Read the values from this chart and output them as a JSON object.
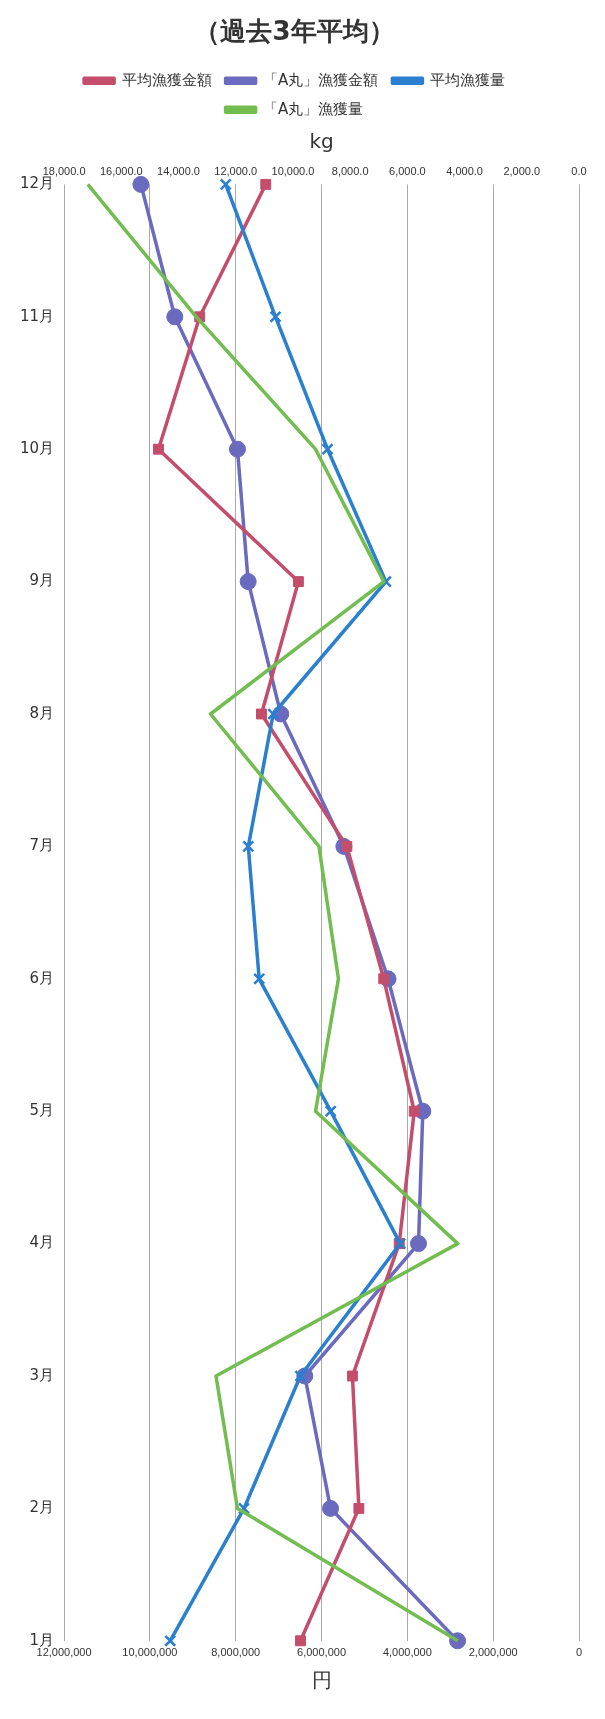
{
  "chart_data": {
    "type": "line",
    "orientation": "horizontal",
    "title": "（過去3年平均）",
    "xlabel": "円",
    "x2label": "kg",
    "categories": [
      "12月",
      "11月",
      "10月",
      "9月",
      "8月",
      "7月",
      "6月",
      "5月",
      "4月",
      "3月",
      "2月",
      "1月"
    ],
    "series": [
      {
        "name": "平均漁獲金額",
        "color": "#c44d6c",
        "marker": "square",
        "values": [
          7300000,
          8840000,
          9800000,
          6540000,
          7400000,
          5410000,
          4550000,
          3840000,
          4190000,
          5280000,
          5130000,
          6490000
        ]
      },
      {
        "name": "「A丸」漁獲金額",
        "color": "#6a6abf",
        "marker": "circle",
        "values": [
          10210000,
          9420000,
          7960000,
          7710000,
          6950000,
          5480000,
          4450000,
          3640000,
          3740000,
          6390000,
          5790000,
          2830000
        ]
      },
      {
        "name": "平均漁獲量",
        "color": "#2a7fcf",
        "marker": "cross",
        "axis": "x2",
        "values": [
          12350,
          10610,
          8790,
          6750,
          10690,
          11560,
          11180,
          8680,
          6250,
          9740,
          11710,
          14290
        ]
      },
      {
        "name": "「A丸」漁獲量",
        "color": "#72bd4f",
        "marker": "none",
        "axis": "x2",
        "values": [
          17170,
          13380,
          9210,
          6820,
          12880,
          9090,
          8410,
          9210,
          4240,
          12690,
          11940,
          4240
        ]
      }
    ],
    "xlim": [
      12000000,
      0
    ],
    "xticks": [
      {
        "value": 0,
        "label": "0"
      },
      {
        "value": 2000000,
        "label": "2,000,000"
      },
      {
        "value": 4000000,
        "label": "4,000,000"
      },
      {
        "value": 6000000,
        "label": "6,000,000"
      },
      {
        "value": 8000000,
        "label": "8,000,000"
      },
      {
        "value": 10000000,
        "label": "10,000,000"
      },
      {
        "value": 12000000,
        "label": "12,000,000"
      }
    ],
    "x2lim": [
      18000,
      0
    ],
    "x2ticks": [
      {
        "value": 0,
        "label": "0.0"
      },
      {
        "value": 2000,
        "label": "2,000.0"
      },
      {
        "value": 4000,
        "label": "4,000.0"
      },
      {
        "value": 6000,
        "label": "6,000.0"
      },
      {
        "value": 8000,
        "label": "8,000.0"
      },
      {
        "value": 10000,
        "label": "10,000.0"
      },
      {
        "value": 12000,
        "label": "12,000.0"
      },
      {
        "value": 14000,
        "label": "14,000.0"
      },
      {
        "value": 16000,
        "label": "16,000.0"
      },
      {
        "value": 18000,
        "label": "18,000.0"
      }
    ],
    "grid": "x",
    "legend": "top",
    "line_style": "solid"
  }
}
